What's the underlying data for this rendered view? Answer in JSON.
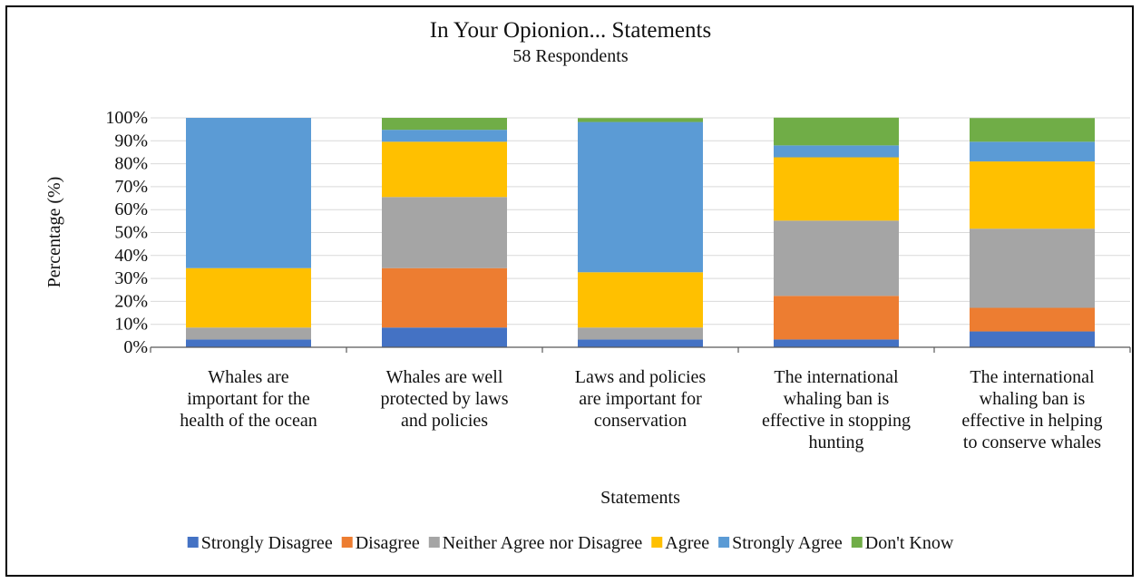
{
  "chart_data": {
    "type": "bar",
    "stacked": true,
    "title": "In Your Opionion... Statements",
    "subtitle": "58 Respondents",
    "xlabel": "Statements",
    "ylabel": "Percentage  (%)",
    "ylim": [
      0,
      100
    ],
    "y_ticks": [
      "0%",
      "10%",
      "20%",
      "30%",
      "40%",
      "50%",
      "60%",
      "70%",
      "80%",
      "90%",
      "100%"
    ],
    "grid": true,
    "legend_position": "bottom",
    "categories": [
      "Whales are important for the health of the ocean",
      "Whales are well protected by laws and policies",
      "Laws and policies are important for conservation",
      "The international whaling ban is effective in stopping hunting",
      "The international whaling ban is effective in helping to conserve whales"
    ],
    "category_lines": [
      [
        "Whales are",
        "important for the",
        "health of the ocean"
      ],
      [
        "Whales are well",
        "protected by laws",
        "and policies"
      ],
      [
        "Laws and policies",
        "are important for",
        "conservation"
      ],
      [
        "The international",
        "whaling ban is",
        "effective in stopping",
        "hunting"
      ],
      [
        "The international",
        "whaling ban is",
        "effective in helping",
        "to conserve whales"
      ]
    ],
    "series": [
      {
        "name": "Strongly Disagree",
        "color": "#4472C4",
        "values": [
          3.4,
          8.6,
          3.4,
          3.4,
          6.9
        ]
      },
      {
        "name": "Disagree",
        "color": "#ED7D31",
        "values": [
          0,
          25.9,
          0,
          19.0,
          10.3
        ]
      },
      {
        "name": "Neither Agree nor Disagree",
        "color": "#A5A5A5",
        "values": [
          5.2,
          31.0,
          5.2,
          32.8,
          34.5
        ]
      },
      {
        "name": "Agree",
        "color": "#FFC000",
        "values": [
          25.9,
          24.1,
          24.1,
          27.6,
          29.3
        ]
      },
      {
        "name": "Strongly Agree",
        "color": "#5B9BD5",
        "values": [
          65.5,
          5.2,
          65.5,
          5.2,
          8.6
        ]
      },
      {
        "name": "Don't Know",
        "color": "#70AD47",
        "values": [
          0,
          5.2,
          1.7,
          12.1,
          10.3
        ]
      }
    ]
  }
}
